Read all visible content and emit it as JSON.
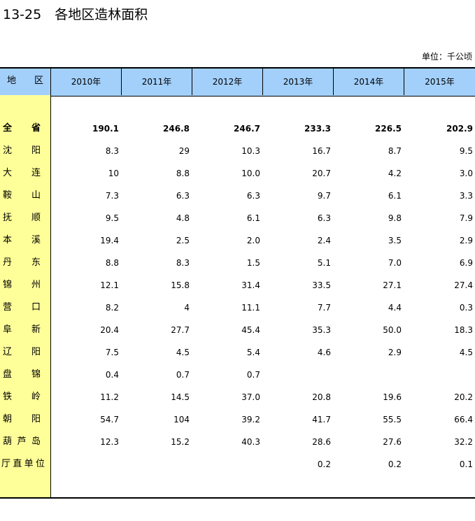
{
  "header": {
    "title": "13-25　各地区造林面积",
    "unit": "单位：千公顷"
  },
  "table": {
    "corner": "地区",
    "columns": [
      "2010年",
      "2011年",
      "2012年",
      "2013年",
      "2014年",
      "2015年"
    ],
    "rows": [
      {
        "name": "全省",
        "cells": [
          "190.1",
          "246.8",
          "246.7",
          "233.3",
          "226.5",
          "202.9"
        ]
      },
      {
        "name": "沈阳",
        "cells": [
          "8.3",
          "29",
          "10.3",
          "16.7",
          "8.7",
          "9.5"
        ]
      },
      {
        "name": "大连",
        "cells": [
          "10",
          "8.8",
          "10.0",
          "20.7",
          "4.2",
          "3.0"
        ]
      },
      {
        "name": "鞍山",
        "cells": [
          "7.3",
          "6.3",
          "6.3",
          "9.7",
          "6.1",
          "3.3"
        ]
      },
      {
        "name": "抚顺",
        "cells": [
          "9.5",
          "4.8",
          "6.1",
          "6.3",
          "9.8",
          "7.9"
        ]
      },
      {
        "name": "本溪",
        "cells": [
          "19.4",
          "2.5",
          "2.0",
          "2.4",
          "3.5",
          "2.9"
        ]
      },
      {
        "name": "丹东",
        "cells": [
          "8.8",
          "8.3",
          "1.5",
          "5.1",
          "7.0",
          "6.9"
        ]
      },
      {
        "name": "锦州",
        "cells": [
          "12.1",
          "15.8",
          "31.4",
          "33.5",
          "27.1",
          "27.4"
        ]
      },
      {
        "name": "营口",
        "cells": [
          "8.2",
          "4",
          "11.1",
          "7.7",
          "4.4",
          "0.3"
        ]
      },
      {
        "name": "阜新",
        "cells": [
          "20.4",
          "27.7",
          "45.4",
          "35.3",
          "50.0",
          "18.3"
        ]
      },
      {
        "name": "辽阳",
        "cells": [
          "7.5",
          "4.5",
          "5.4",
          "4.6",
          "2.9",
          "4.5"
        ]
      },
      {
        "name": "盘锦",
        "cells": [
          "0.4",
          "0.7",
          "0.7",
          null,
          null,
          null
        ]
      },
      {
        "name": "铁岭",
        "cells": [
          "11.2",
          "14.5",
          "37.0",
          "20.8",
          "19.6",
          "20.2"
        ]
      },
      {
        "name": "朝阳",
        "cells": [
          "54.7",
          "104",
          "39.2",
          "41.7",
          "55.5",
          "66.4"
        ]
      },
      {
        "name": "葫芦岛",
        "cells": [
          "12.3",
          "15.2",
          "40.3",
          "28.6",
          "27.6",
          "32.2"
        ]
      },
      {
        "name": "厅直单位",
        "cells": [
          null,
          null,
          null,
          "0.2",
          "0.2",
          "0.1"
        ]
      }
    ]
  }
}
